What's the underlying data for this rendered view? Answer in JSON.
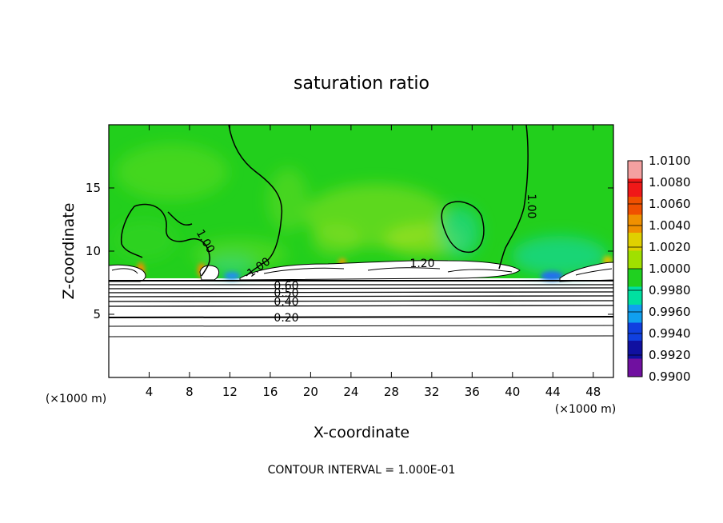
{
  "chart_data": {
    "type": "heatmap",
    "title": "saturation ratio",
    "xlabel": "X-coordinate",
    "ylabel": "Z-coordinate",
    "x_unit": "(×1000 m)",
    "y_unit": "(×1000 m)",
    "xlim": [
      0,
      50
    ],
    "ylim": [
      0,
      20
    ],
    "x_ticks": [
      4,
      8,
      12,
      16,
      20,
      24,
      28,
      32,
      36,
      40,
      44,
      48
    ],
    "y_ticks": [
      5,
      10,
      15
    ],
    "footer": "CONTOUR INTERVAL = 1.000E-01",
    "colorbar": {
      "levels": [
        "1.0100",
        "1.0080",
        "1.0060",
        "1.0040",
        "1.0020",
        "1.0000",
        "0.9980",
        "0.9960",
        "0.9940",
        "0.9920",
        "0.9900"
      ],
      "colors": [
        "#f4a0a0",
        "#f01818",
        "#f05000",
        "#f09000",
        "#e0d000",
        "#a0e000",
        "#20d020",
        "#00e0a0",
        "#10a0f0",
        "#1040e0",
        "#1010a0",
        "#7010a0"
      ]
    },
    "contour_labels": [
      {
        "text": "1.00",
        "x": 9.0,
        "z": 10.8
      },
      {
        "text": "1.00",
        "x": 15.5,
        "z": 8.9
      },
      {
        "text": "1.20",
        "x": 30.0,
        "z": 9.1
      },
      {
        "text": "1.00",
        "x": 41.5,
        "z": 13.8
      },
      {
        "text": "0.60",
        "x": 17.5,
        "z": 7.1
      },
      {
        "text": "0.50",
        "x": 17.5,
        "z": 6.7
      },
      {
        "text": "0.40",
        "x": 17.5,
        "z": 6.1
      },
      {
        "text": "0.20",
        "x": 17.5,
        "z": 4.8
      }
    ]
  }
}
